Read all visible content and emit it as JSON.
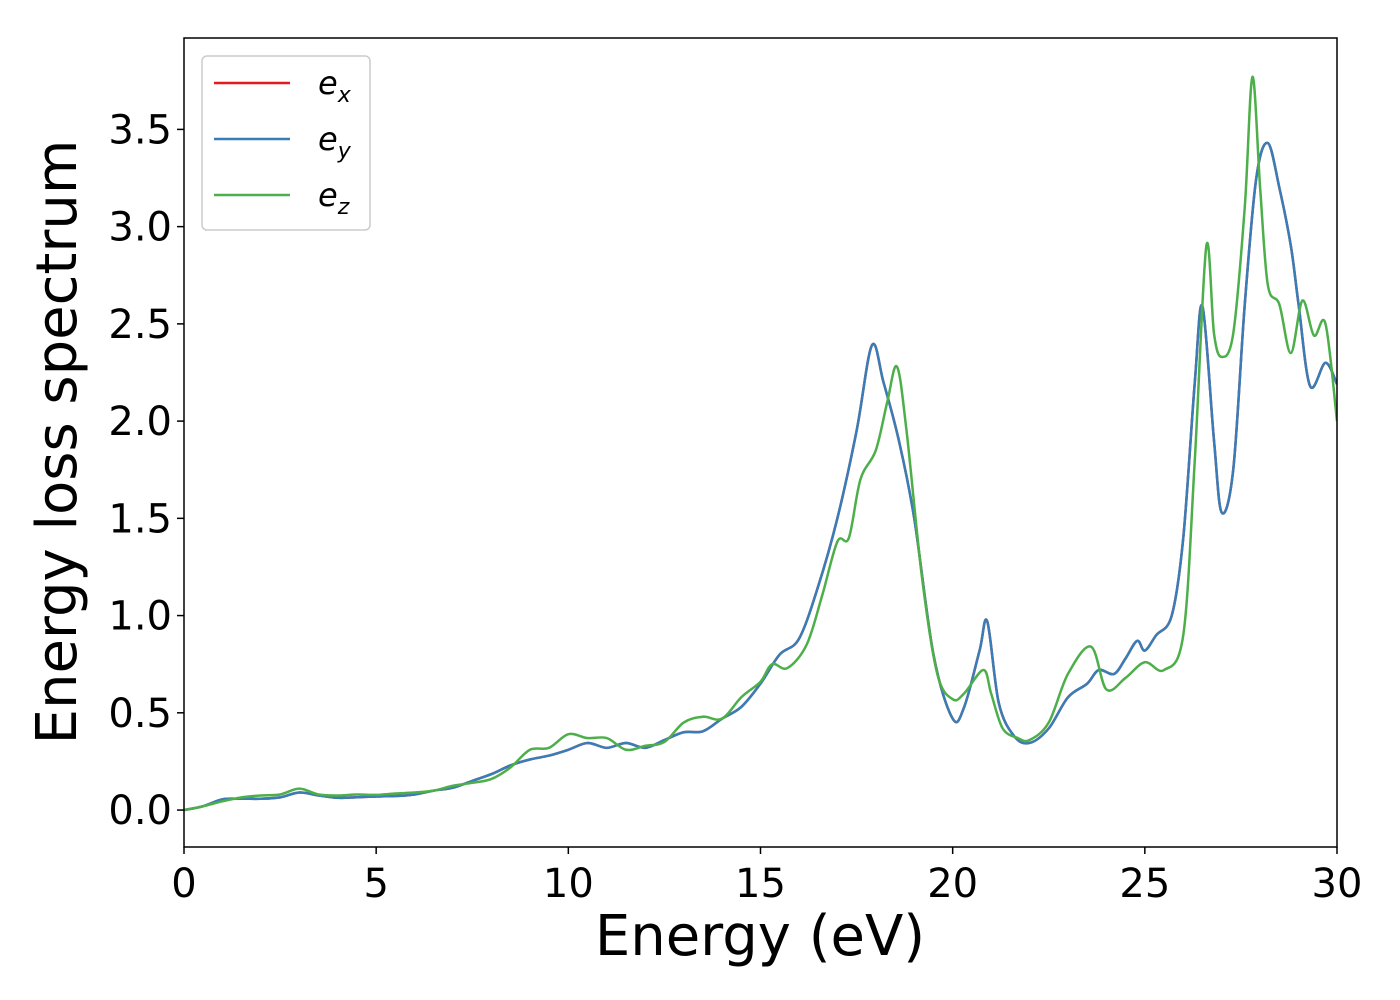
{
  "chart_data": {
    "type": "line",
    "title": "",
    "xlabel": "Energy (eV)",
    "ylabel": "Energy loss spectrum",
    "xlim": [
      0,
      30
    ],
    "ylim": [
      -0.19,
      3.97
    ],
    "x_ticks": [
      "0",
      "5",
      "10",
      "15",
      "20",
      "25",
      "30"
    ],
    "y_ticks": [
      "0.0",
      "0.5",
      "1.0",
      "1.5",
      "2.0",
      "2.5",
      "3.0",
      "3.5"
    ],
    "grid": false,
    "legend_position": "upper-left",
    "series": [
      {
        "name": "e_x",
        "legend_base": "e",
        "legend_sub": "x",
        "color": "#e41a1c",
        "points": [
          [
            0,
            0
          ],
          [
            0.5,
            0.02
          ],
          [
            1,
            0.055
          ],
          [
            1.5,
            0.058
          ],
          [
            2,
            0.058
          ],
          [
            2.5,
            0.065
          ],
          [
            3,
            0.09
          ],
          [
            3.5,
            0.075
          ],
          [
            4,
            0.063
          ],
          [
            4.5,
            0.066
          ],
          [
            5,
            0.07
          ],
          [
            5.5,
            0.072
          ],
          [
            6,
            0.08
          ],
          [
            6.5,
            0.1
          ],
          [
            7,
            0.115
          ],
          [
            7.5,
            0.15
          ],
          [
            8,
            0.185
          ],
          [
            8.5,
            0.23
          ],
          [
            9,
            0.26
          ],
          [
            9.5,
            0.28
          ],
          [
            10,
            0.31
          ],
          [
            10.5,
            0.345
          ],
          [
            11,
            0.32
          ],
          [
            11.5,
            0.345
          ],
          [
            12,
            0.32
          ],
          [
            12.5,
            0.36
          ],
          [
            13,
            0.4
          ],
          [
            13.5,
            0.405
          ],
          [
            14,
            0.47
          ],
          [
            14.5,
            0.53
          ],
          [
            15,
            0.65
          ],
          [
            15.5,
            0.8
          ],
          [
            16,
            0.88
          ],
          [
            16.5,
            1.15
          ],
          [
            17,
            1.5
          ],
          [
            17.5,
            1.95
          ],
          [
            17.9,
            2.39
          ],
          [
            18.2,
            2.2
          ],
          [
            18.6,
            1.9
          ],
          [
            19,
            1.5
          ],
          [
            19.5,
            0.8
          ],
          [
            20,
            0.47
          ],
          [
            20.3,
            0.53
          ],
          [
            20.7,
            0.82
          ],
          [
            20.9,
            0.97
          ],
          [
            21.2,
            0.55
          ],
          [
            21.6,
            0.38
          ],
          [
            22,
            0.345
          ],
          [
            22.5,
            0.42
          ],
          [
            23,
            0.58
          ],
          [
            23.5,
            0.65
          ],
          [
            23.8,
            0.72
          ],
          [
            24.2,
            0.7
          ],
          [
            24.5,
            0.78
          ],
          [
            24.8,
            0.87
          ],
          [
            25,
            0.82
          ],
          [
            25.3,
            0.9
          ],
          [
            25.7,
            1.0
          ],
          [
            26,
            1.4
          ],
          [
            26.3,
            2.2
          ],
          [
            26.5,
            2.59
          ],
          [
            26.8,
            1.9
          ],
          [
            27,
            1.53
          ],
          [
            27.3,
            1.75
          ],
          [
            27.6,
            2.6
          ],
          [
            27.9,
            3.25
          ],
          [
            28.2,
            3.43
          ],
          [
            28.5,
            3.2
          ],
          [
            28.8,
            2.9
          ],
          [
            29,
            2.6
          ],
          [
            29.3,
            2.18
          ],
          [
            29.7,
            2.3
          ],
          [
            30,
            2.19
          ]
        ]
      },
      {
        "name": "e_y",
        "legend_base": "e",
        "legend_sub": "y",
        "color": "#377eb8",
        "points": [
          [
            0,
            0
          ],
          [
            0.5,
            0.02
          ],
          [
            1,
            0.055
          ],
          [
            1.5,
            0.058
          ],
          [
            2,
            0.058
          ],
          [
            2.5,
            0.065
          ],
          [
            3,
            0.09
          ],
          [
            3.5,
            0.075
          ],
          [
            4,
            0.063
          ],
          [
            4.5,
            0.066
          ],
          [
            5,
            0.07
          ],
          [
            5.5,
            0.072
          ],
          [
            6,
            0.08
          ],
          [
            6.5,
            0.1
          ],
          [
            7,
            0.115
          ],
          [
            7.5,
            0.15
          ],
          [
            8,
            0.185
          ],
          [
            8.5,
            0.23
          ],
          [
            9,
            0.26
          ],
          [
            9.5,
            0.28
          ],
          [
            10,
            0.31
          ],
          [
            10.5,
            0.345
          ],
          [
            11,
            0.32
          ],
          [
            11.5,
            0.345
          ],
          [
            12,
            0.32
          ],
          [
            12.5,
            0.36
          ],
          [
            13,
            0.4
          ],
          [
            13.5,
            0.405
          ],
          [
            14,
            0.47
          ],
          [
            14.5,
            0.53
          ],
          [
            15,
            0.65
          ],
          [
            15.5,
            0.8
          ],
          [
            16,
            0.88
          ],
          [
            16.5,
            1.15
          ],
          [
            17,
            1.5
          ],
          [
            17.5,
            1.95
          ],
          [
            17.9,
            2.39
          ],
          [
            18.2,
            2.2
          ],
          [
            18.6,
            1.9
          ],
          [
            19,
            1.5
          ],
          [
            19.5,
            0.8
          ],
          [
            20,
            0.47
          ],
          [
            20.3,
            0.53
          ],
          [
            20.7,
            0.82
          ],
          [
            20.9,
            0.97
          ],
          [
            21.2,
            0.55
          ],
          [
            21.6,
            0.38
          ],
          [
            22,
            0.345
          ],
          [
            22.5,
            0.42
          ],
          [
            23,
            0.58
          ],
          [
            23.5,
            0.65
          ],
          [
            23.8,
            0.72
          ],
          [
            24.2,
            0.7
          ],
          [
            24.5,
            0.78
          ],
          [
            24.8,
            0.87
          ],
          [
            25,
            0.82
          ],
          [
            25.3,
            0.9
          ],
          [
            25.7,
            1.0
          ],
          [
            26,
            1.4
          ],
          [
            26.3,
            2.2
          ],
          [
            26.5,
            2.59
          ],
          [
            26.8,
            1.9
          ],
          [
            27,
            1.53
          ],
          [
            27.3,
            1.75
          ],
          [
            27.6,
            2.6
          ],
          [
            27.9,
            3.25
          ],
          [
            28.2,
            3.43
          ],
          [
            28.5,
            3.2
          ],
          [
            28.8,
            2.9
          ],
          [
            29,
            2.6
          ],
          [
            29.3,
            2.18
          ],
          [
            29.7,
            2.3
          ],
          [
            30,
            2.19
          ]
        ]
      },
      {
        "name": "e_z",
        "legend_base": "e",
        "legend_sub": "z",
        "color": "#4daf4a",
        "points": [
          [
            0,
            0
          ],
          [
            0.5,
            0.02
          ],
          [
            1,
            0.045
          ],
          [
            1.5,
            0.065
          ],
          [
            2,
            0.075
          ],
          [
            2.5,
            0.08
          ],
          [
            3,
            0.11
          ],
          [
            3.5,
            0.08
          ],
          [
            4,
            0.075
          ],
          [
            4.5,
            0.08
          ],
          [
            5,
            0.078
          ],
          [
            5.5,
            0.085
          ],
          [
            6,
            0.09
          ],
          [
            6.5,
            0.1
          ],
          [
            7,
            0.125
          ],
          [
            7.5,
            0.14
          ],
          [
            8,
            0.16
          ],
          [
            8.5,
            0.22
          ],
          [
            9,
            0.31
          ],
          [
            9.5,
            0.32
          ],
          [
            10,
            0.39
          ],
          [
            10.5,
            0.37
          ],
          [
            11,
            0.37
          ],
          [
            11.5,
            0.31
          ],
          [
            12,
            0.33
          ],
          [
            12.5,
            0.35
          ],
          [
            13,
            0.45
          ],
          [
            13.5,
            0.48
          ],
          [
            14,
            0.47
          ],
          [
            14.5,
            0.58
          ],
          [
            15,
            0.66
          ],
          [
            15.3,
            0.75
          ],
          [
            15.7,
            0.73
          ],
          [
            16.2,
            0.85
          ],
          [
            16.6,
            1.1
          ],
          [
            17,
            1.38
          ],
          [
            17.3,
            1.4
          ],
          [
            17.6,
            1.7
          ],
          [
            18,
            1.85
          ],
          [
            18.3,
            2.1
          ],
          [
            18.55,
            2.28
          ],
          [
            18.8,
            1.95
          ],
          [
            19.2,
            1.2
          ],
          [
            19.6,
            0.7
          ],
          [
            20,
            0.57
          ],
          [
            20.3,
            0.6
          ],
          [
            20.8,
            0.72
          ],
          [
            21,
            0.6
          ],
          [
            21.3,
            0.42
          ],
          [
            21.7,
            0.37
          ],
          [
            22,
            0.36
          ],
          [
            22.5,
            0.45
          ],
          [
            23,
            0.7
          ],
          [
            23.6,
            0.84
          ],
          [
            24,
            0.62
          ],
          [
            24.5,
            0.68
          ],
          [
            25,
            0.76
          ],
          [
            25.5,
            0.72
          ],
          [
            26,
            0.9
          ],
          [
            26.3,
            1.8
          ],
          [
            26.6,
            2.9
          ],
          [
            26.8,
            2.45
          ],
          [
            27,
            2.33
          ],
          [
            27.3,
            2.45
          ],
          [
            27.6,
            3.1
          ],
          [
            27.8,
            3.77
          ],
          [
            28.0,
            3.2
          ],
          [
            28.2,
            2.7
          ],
          [
            28.5,
            2.6
          ],
          [
            28.8,
            2.35
          ],
          [
            29.1,
            2.62
          ],
          [
            29.4,
            2.44
          ],
          [
            29.7,
            2.5
          ],
          [
            30,
            2.0
          ]
        ]
      }
    ]
  }
}
